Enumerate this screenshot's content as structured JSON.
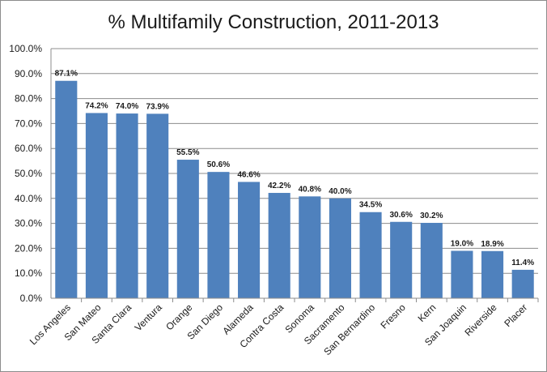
{
  "chart_data": {
    "type": "bar",
    "title": "% Multifamily Construction, 2011-2013",
    "xlabel": "",
    "ylabel": "",
    "ylim": [
      0,
      100
    ],
    "grid": true,
    "legend": "none",
    "bar_color": "#4f81bd",
    "grid_color": "#8c8c8c",
    "y_ticks": [
      "0.0%",
      "10.0%",
      "20.0%",
      "30.0%",
      "40.0%",
      "50.0%",
      "60.0%",
      "70.0%",
      "80.0%",
      "90.0%",
      "100.0%"
    ],
    "categories": [
      "Los Angeles",
      "San Mateo",
      "Santa Clara",
      "Ventura",
      "Orange",
      "San Diego",
      "Alameda",
      "Contra Costa",
      "Sonoma",
      "Sacramento",
      "San Bernardino",
      "Fresno",
      "Kern",
      "San Joaquin",
      "Riverside",
      "Placer"
    ],
    "values": [
      87.1,
      74.2,
      74.0,
      73.9,
      55.5,
      50.6,
      46.6,
      42.2,
      40.8,
      40.0,
      34.5,
      30.6,
      30.2,
      19.0,
      18.9,
      11.4
    ],
    "value_labels": [
      "87.1%",
      "74.2%",
      "74.0%",
      "73.9%",
      "55.5%",
      "50.6%",
      "46.6%",
      "42.2%",
      "40.8%",
      "40.0%",
      "34.5%",
      "30.6%",
      "30.2%",
      "19.0%",
      "18.9%",
      "11.4%"
    ]
  }
}
